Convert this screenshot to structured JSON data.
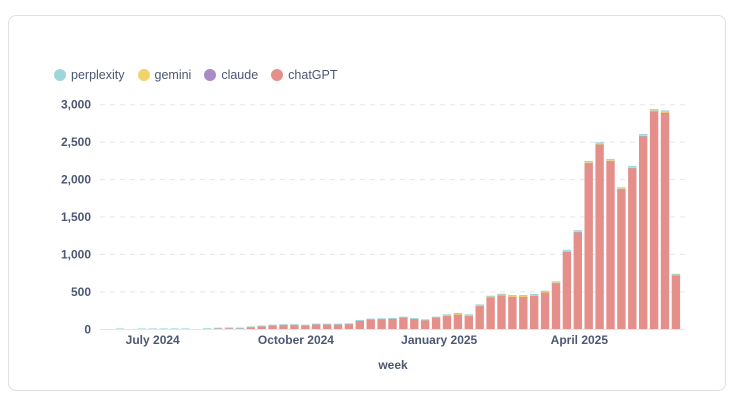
{
  "chart_data": {
    "type": "bar",
    "stacked": true,
    "xlabel": "week",
    "ylabel": "",
    "ylim": [
      0,
      3000
    ],
    "yticks": [
      0,
      500,
      1000,
      1500,
      2000,
      2500,
      3000
    ],
    "ytick_labels": [
      "0",
      "500",
      "1,000",
      "1,500",
      "2,000",
      "2,500",
      "3,000"
    ],
    "xticks": [
      "2024-07-01",
      "2024-10-01",
      "2025-01-01",
      "2025-04-01"
    ],
    "xtick_labels": [
      "July 2024",
      "October 2024",
      "January 2025",
      "April 2025"
    ],
    "grid": "horizontal dashed",
    "legend_position": "top-left",
    "x": [
      "2024-06-10",
      "2024-06-17",
      "2024-06-24",
      "2024-07-01",
      "2024-07-08",
      "2024-07-15",
      "2024-07-22",
      "2024-07-29",
      "2024-08-05",
      "2024-08-12",
      "2024-08-19",
      "2024-08-26",
      "2024-09-02",
      "2024-09-09",
      "2024-09-16",
      "2024-09-23",
      "2024-09-30",
      "2024-10-07",
      "2024-10-14",
      "2024-10-21",
      "2024-10-28",
      "2024-11-04",
      "2024-11-11",
      "2024-11-18",
      "2024-11-25",
      "2024-12-02",
      "2024-12-09",
      "2024-12-16",
      "2024-12-23",
      "2024-12-30",
      "2025-01-06",
      "2025-01-13",
      "2025-01-20",
      "2025-01-27",
      "2025-02-03",
      "2025-02-10",
      "2025-02-17",
      "2025-02-24",
      "2025-03-03",
      "2025-03-10",
      "2025-03-17",
      "2025-03-24",
      "2025-03-31",
      "2025-04-07",
      "2025-04-14",
      "2025-04-21",
      "2025-04-28",
      "2025-05-05",
      "2025-05-12",
      "2025-05-19",
      "2025-05-26",
      "2025-06-02"
    ],
    "series": [
      {
        "name": "chatGPT",
        "color": "#e58f8b",
        "values": [
          0,
          0,
          0,
          0,
          0,
          0,
          0,
          0,
          0,
          17,
          22,
          20,
          30,
          42,
          54,
          60,
          60,
          54,
          68,
          67,
          67,
          72,
          115,
          133,
          137,
          142,
          159,
          140,
          123,
          159,
          188,
          206,
          188,
          320,
          436,
          461,
          443,
          443,
          456,
          500,
          622,
          1040,
          1302,
          2223,
          2471,
          2250,
          1875,
          2156,
          2580,
          2911,
          2893,
          727
        ]
      },
      {
        "name": "claude",
        "color": "#a98bc9",
        "values": [
          0,
          0,
          0,
          0,
          0,
          0,
          0,
          0,
          0,
          0,
          0,
          0,
          0,
          0,
          0,
          0,
          0,
          0,
          0,
          0,
          0,
          0,
          0,
          0,
          0,
          0,
          0,
          0,
          0,
          0,
          0,
          0,
          0,
          0,
          0,
          0,
          0,
          0,
          0,
          0,
          2,
          2,
          2,
          2,
          3,
          2,
          2,
          2,
          3,
          3,
          3,
          1
        ]
      },
      {
        "name": "gemini",
        "color": "#f1d26c",
        "values": [
          0,
          0,
          0,
          0,
          0,
          0,
          0,
          0,
          0,
          0,
          0,
          0,
          0,
          0,
          0,
          0,
          0,
          0,
          0,
          0,
          0,
          0,
          0,
          0,
          0,
          0,
          0,
          0,
          0,
          0,
          2,
          2,
          2,
          3,
          3,
          3,
          3,
          3,
          3,
          4,
          4,
          5,
          5,
          6,
          6,
          6,
          6,
          6,
          8,
          8,
          8,
          4
        ]
      },
      {
        "name": "perplexity",
        "color": "#9fd6d9",
        "values": [
          12,
          0,
          12,
          12,
          12,
          12,
          12,
          0,
          15,
          5,
          3,
          2,
          8,
          8,
          8,
          8,
          8,
          8,
          8,
          8,
          8,
          8,
          10,
          10,
          10,
          10,
          10,
          10,
          10,
          10,
          10,
          10,
          10,
          10,
          10,
          12,
          12,
          12,
          12,
          12,
          12,
          15,
          15,
          18,
          18,
          18,
          15,
          18,
          18,
          20,
          20,
          10
        ]
      }
    ],
    "legend": [
      "perplexity",
      "gemini",
      "claude",
      "chatGPT"
    ]
  }
}
